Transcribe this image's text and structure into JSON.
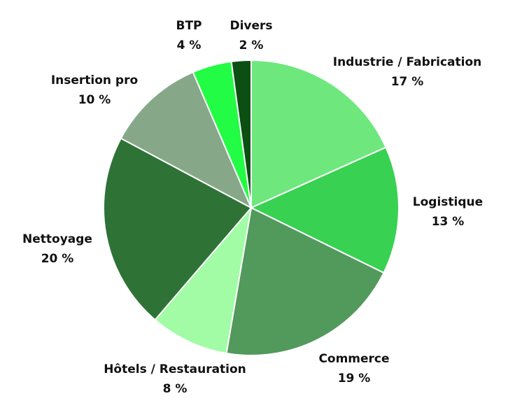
{
  "chart_data": {
    "type": "pie",
    "start": "12 o'clock",
    "direction": "clockwise",
    "slices": [
      {
        "label": "Industrie / Fabrication",
        "value": 17,
        "display": "17 %",
        "color": "#6ee87d"
      },
      {
        "label": "Logistique",
        "value": 13,
        "display": "13 %",
        "color": "#38d152"
      },
      {
        "label": "Commerce",
        "value": 19,
        "display": "19 %",
        "color": "#52995c"
      },
      {
        "label": "Hôtels / Restauration",
        "value": 8,
        "display": "8 %",
        "color": "#a1fca5"
      },
      {
        "label": "Nettoyage",
        "value": 20,
        "display": "20 %",
        "color": "#2e7236"
      },
      {
        "label": "Insertion pro",
        "value": 10,
        "display": "10 %",
        "color": "#86a889"
      },
      {
        "label": "BTP",
        "value": 4,
        "display": "4 %",
        "color": "#22fc44"
      },
      {
        "label": "Divers",
        "value": 2,
        "display": "2 %",
        "color": "#0c4f12"
      }
    ]
  }
}
